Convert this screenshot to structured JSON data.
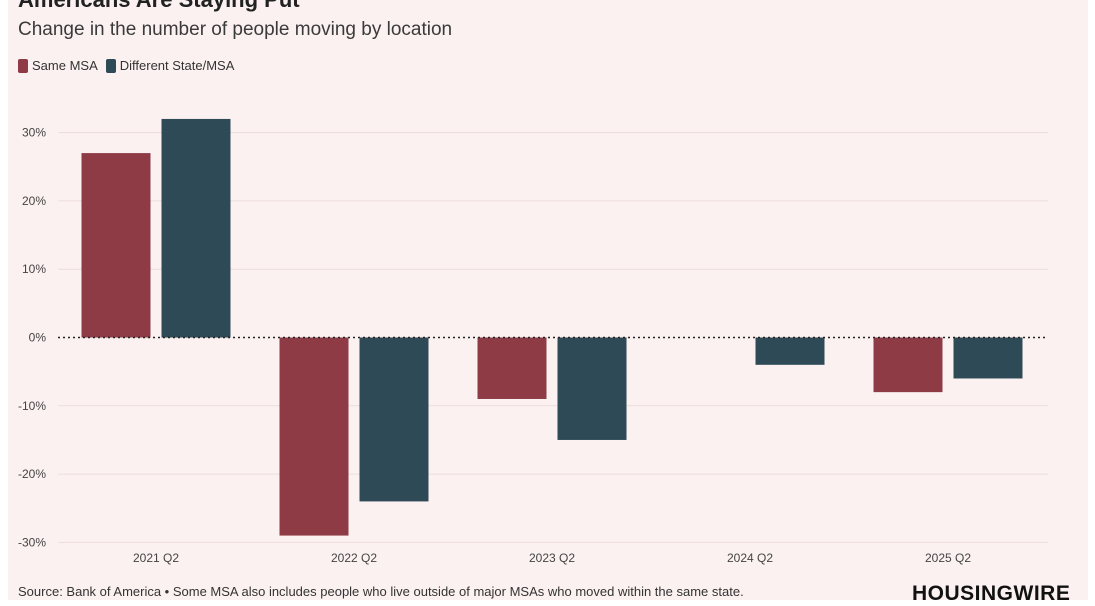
{
  "header": {
    "title": "Americans Are Staying Put",
    "subtitle": "Change in the number of people moving by location"
  },
  "footer": {
    "source": "Source: Bank of America • Some MSA also includes people who live outside of major MSAs who moved within the same state.",
    "logo": "HOUSINGWIRE"
  },
  "chart_data": {
    "type": "bar",
    "categories": [
      "2021 Q2",
      "2022 Q2",
      "2023 Q2",
      "2024 Q2",
      "2025 Q2"
    ],
    "series": [
      {
        "name": "Same MSA",
        "color": "#8e3b45",
        "values": [
          27,
          -29,
          -9,
          0,
          -8
        ]
      },
      {
        "name": "Different State/MSA",
        "color": "#2f4a57",
        "values": [
          32,
          -24,
          -15,
          -4,
          -6
        ]
      }
    ],
    "y_ticks": [
      "30%",
      "20%",
      "10%",
      "0%",
      "-10%",
      "-20%",
      "-30%"
    ],
    "y_tick_values": [
      30,
      20,
      10,
      0,
      -10,
      -20,
      -30
    ],
    "ylim": [
      -30,
      32
    ],
    "legend_position": "top-left",
    "grid": true
  }
}
